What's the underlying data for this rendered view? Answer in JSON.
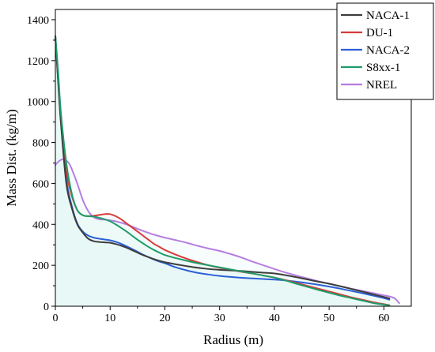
{
  "chart_data": {
    "type": "line",
    "title": "",
    "xlabel": "Radius (m)",
    "ylabel": "Mass Dist. (kg/m)",
    "xlim": [
      0,
      65
    ],
    "ylim": [
      0,
      1450
    ],
    "xticks": [
      0,
      10,
      20,
      30,
      40,
      50,
      60
    ],
    "yticks": [
      0,
      200,
      400,
      600,
      800,
      1000,
      1200,
      1400
    ],
    "grid": false,
    "legend_position": "top-right",
    "series": [
      {
        "name": "NACA-1",
        "color": "#3d3d3d",
        "x": [
          0,
          0.5,
          1,
          2,
          3,
          4,
          5,
          6,
          7,
          8,
          9,
          10,
          11,
          12,
          13,
          14,
          15,
          16,
          17,
          18,
          19,
          20,
          22,
          24,
          26,
          28,
          30,
          32,
          34,
          36,
          38,
          40,
          42,
          44,
          46,
          48,
          50,
          52,
          54,
          56,
          58,
          60,
          61
        ],
        "y": [
          1320,
          1100,
          900,
          600,
          480,
          400,
          360,
          330,
          318,
          314,
          312,
          310,
          304,
          296,
          286,
          274,
          262,
          250,
          240,
          230,
          222,
          215,
          205,
          196,
          188,
          182,
          178,
          175,
          172,
          168,
          164,
          160,
          152,
          142,
          131,
          120,
          110,
          98,
          85,
          72,
          58,
          45,
          38
        ]
      },
      {
        "name": "DU-1",
        "color": "#d93b3b",
        "x": [
          0,
          0.5,
          1,
          2,
          3,
          4,
          5,
          6,
          7,
          8,
          9,
          10,
          11,
          12,
          13,
          14,
          15,
          16,
          17,
          18,
          19,
          20,
          22,
          24,
          26,
          28,
          30,
          32,
          34,
          36,
          38,
          40,
          42,
          44,
          46,
          48,
          50,
          52,
          54,
          56,
          58,
          60,
          61
        ],
        "y": [
          1320,
          1120,
          920,
          660,
          540,
          470,
          445,
          440,
          442,
          446,
          450,
          450,
          440,
          425,
          405,
          385,
          365,
          345,
          325,
          305,
          290,
          275,
          252,
          232,
          215,
          200,
          188,
          178,
          168,
          160,
          150,
          140,
          128,
          114,
          100,
          86,
          72,
          58,
          44,
          32,
          20,
          10,
          5
        ]
      },
      {
        "name": "NACA-2",
        "color": "#2d5fd6",
        "x": [
          0,
          0.5,
          1,
          2,
          3,
          4,
          5,
          6,
          7,
          8,
          9,
          10,
          11,
          12,
          13,
          14,
          15,
          16,
          17,
          18,
          19,
          20,
          22,
          24,
          26,
          28,
          30,
          32,
          34,
          36,
          38,
          40,
          42,
          44,
          46,
          48,
          50,
          52,
          54,
          56,
          58,
          60,
          61
        ],
        "y": [
          1320,
          1110,
          910,
          620,
          490,
          405,
          365,
          345,
          335,
          330,
          326,
          322,
          315,
          305,
          293,
          280,
          266,
          252,
          240,
          228,
          218,
          210,
          190,
          175,
          163,
          155,
          148,
          143,
          139,
          136,
          133,
          130,
          126,
          120,
          113,
          105,
          96,
          86,
          75,
          64,
          52,
          40,
          32
        ]
      },
      {
        "name": "S8xx-1",
        "color": "#1e9c68",
        "x": [
          0,
          0.5,
          1,
          2,
          3,
          4,
          5,
          6,
          7,
          8,
          9,
          10,
          11,
          12,
          13,
          14,
          15,
          16,
          17,
          18,
          19,
          20,
          22,
          24,
          26,
          28,
          30,
          32,
          34,
          36,
          38,
          40,
          42,
          44,
          46,
          48,
          50,
          52,
          54,
          56,
          58,
          60,
          61
        ],
        "y": [
          1320,
          1150,
          950,
          700,
          550,
          470,
          445,
          440,
          438,
          432,
          425,
          415,
          400,
          383,
          365,
          345,
          325,
          307,
          290,
          275,
          262,
          250,
          235,
          222,
          210,
          200,
          190,
          180,
          170,
          160,
          150,
          140,
          126,
          110,
          95,
          80,
          66,
          52,
          40,
          28,
          16,
          8,
          4
        ]
      },
      {
        "name": "NREL",
        "color": "#b77ee0",
        "x": [
          0,
          0.5,
          1,
          1.5,
          2,
          2.5,
          3,
          4,
          5,
          6,
          7,
          8,
          9,
          10,
          11,
          12,
          13,
          14,
          15,
          16,
          18,
          20,
          22,
          24,
          26,
          28,
          30,
          32,
          34,
          36,
          38,
          40,
          42,
          44,
          46,
          48,
          50,
          52,
          54,
          56,
          58,
          60,
          61,
          62,
          62.8
        ],
        "y": [
          690,
          705,
          715,
          718,
          712,
          698,
          670,
          600,
          520,
          465,
          435,
          425,
          423,
          420,
          415,
          408,
          400,
          390,
          378,
          368,
          350,
          335,
          323,
          310,
          295,
          282,
          270,
          255,
          238,
          218,
          200,
          182,
          165,
          150,
          136,
          122,
          110,
          98,
          86,
          75,
          64,
          53,
          48,
          38,
          15
        ]
      }
    ]
  }
}
